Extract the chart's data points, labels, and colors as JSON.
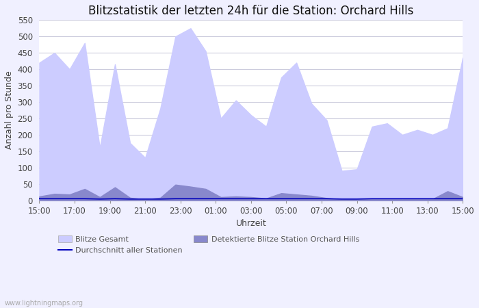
{
  "title": "Blitzstatistik der letzten 24h für die Station: Orchard Hills",
  "xlabel": "Uhrzeit",
  "ylabel": "Anzahl pro Stunde",
  "ylim": [
    0,
    550
  ],
  "yticks": [
    0,
    50,
    100,
    150,
    200,
    250,
    300,
    350,
    400,
    450,
    500,
    550
  ],
  "x_labels": [
    "15:00",
    "17:00",
    "19:00",
    "21:00",
    "23:00",
    "01:00",
    "03:00",
    "05:00",
    "07:00",
    "09:00",
    "11:00",
    "13:00",
    "15:00"
  ],
  "gesamt_color": "#ccccff",
  "station_color": "#8888cc",
  "avg_color": "#0000bb",
  "bg_color": "#f0f0ff",
  "grid_color": "#ccccdd",
  "title_fontsize": 12,
  "label_fontsize": 9,
  "tick_fontsize": 8.5,
  "watermark": "www.lightningmaps.org",
  "gesamt": [
    420,
    450,
    400,
    480,
    160,
    415,
    175,
    130,
    280,
    500,
    525,
    455,
    250,
    305,
    260,
    225,
    375,
    420,
    295,
    245,
    90,
    95,
    225,
    235,
    200,
    215,
    200,
    220,
    435
  ],
  "station": [
    12,
    20,
    18,
    35,
    10,
    40,
    8,
    3,
    8,
    48,
    42,
    35,
    10,
    12,
    10,
    6,
    22,
    18,
    14,
    7,
    3,
    4,
    5,
    5,
    3,
    5,
    4,
    28,
    10
  ],
  "avg": [
    5,
    5,
    5,
    5,
    4,
    5,
    4,
    4,
    4,
    5,
    5,
    5,
    5,
    5,
    5,
    5,
    5,
    5,
    5,
    5,
    4,
    4,
    5,
    5,
    5,
    5,
    5,
    5,
    5
  ]
}
